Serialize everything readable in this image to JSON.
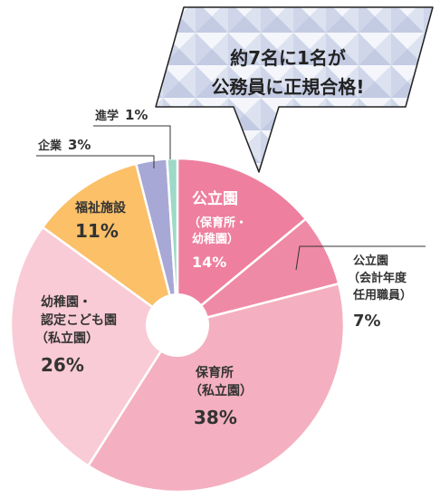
{
  "callout": {
    "line1": "約7名に1名が",
    "line2": "公務員に正規合格!"
  },
  "chart_data": {
    "type": "pie",
    "style": "donut",
    "unit": "%",
    "slices": [
      {
        "key": "public_nursery",
        "label_lines": [
          "公立園",
          "（保育所・",
          "幼稚園）"
        ],
        "value": 14,
        "value_label": "14%",
        "color": "#ee7f9f",
        "label_placement": "inside"
      },
      {
        "key": "public_fiscal",
        "label_lines": [
          "公立園",
          "（会計年度",
          "任用職員）"
        ],
        "value": 7,
        "value_label": "7%",
        "color": "#ef8aa6",
        "label_placement": "outside"
      },
      {
        "key": "private_nursery",
        "label_lines": [
          "保育所",
          "（私立園）"
        ],
        "value": 38,
        "value_label": "38%",
        "color": "#f4b0c0",
        "label_placement": "inside"
      },
      {
        "key": "private_kinder",
        "label_lines": [
          "幼稚園・",
          "認定こども園",
          "（私立園）"
        ],
        "value": 26,
        "value_label": "26%",
        "color": "#f9cbd6",
        "label_placement": "inside"
      },
      {
        "key": "welfare",
        "label_lines": [
          "福祉施設"
        ],
        "value": 11,
        "value_label": "11%",
        "color": "#fbc068",
        "label_placement": "inside"
      },
      {
        "key": "company",
        "label_lines": [
          "企業"
        ],
        "value": 3,
        "value_label": "3%",
        "color": "#a8a8d6",
        "label_placement": "outside"
      },
      {
        "key": "further_study",
        "label_lines": [
          "進学"
        ],
        "value": 1,
        "value_label": "1%",
        "color": "#9ed9c8",
        "label_placement": "outside"
      }
    ]
  }
}
